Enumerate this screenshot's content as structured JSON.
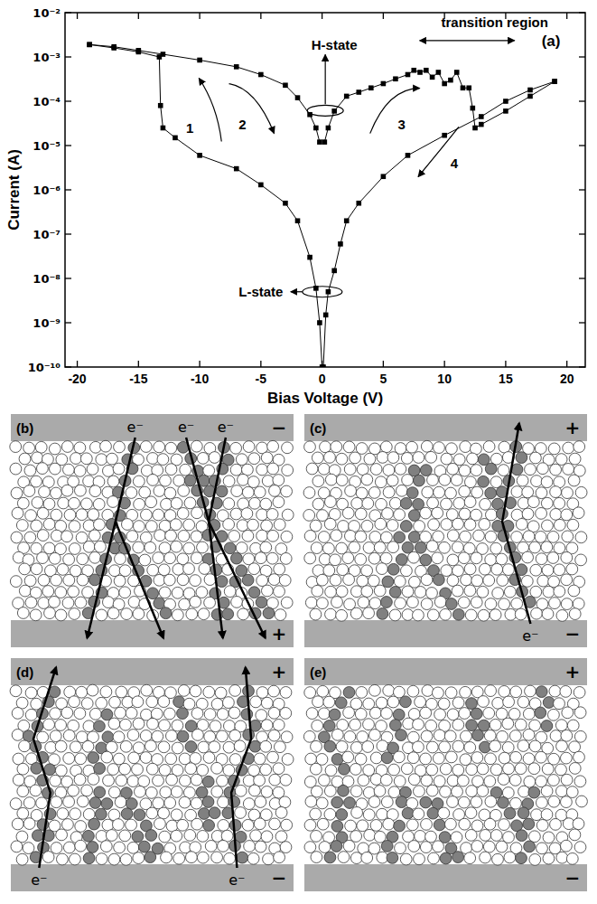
{
  "chart_data": {
    "type": "line",
    "xlabel": "Bias Voltage (V)",
    "ylabel": "Current (A)",
    "xlim": [
      -21,
      21.5
    ],
    "ylim": [
      1e-10,
      0.01
    ],
    "log": "y",
    "grid": false,
    "xticks": [
      -20,
      -15,
      -10,
      -5,
      0,
      5,
      10,
      15,
      20
    ],
    "yticks": [
      {
        "value": 1e-10,
        "label": "10⁻¹⁰"
      },
      {
        "value": 1e-09,
        "label": "10⁻⁹"
      },
      {
        "value": 1e-08,
        "label": "10⁻⁸"
      },
      {
        "value": 1e-07,
        "label": "10⁻⁷"
      },
      {
        "value": 1e-06,
        "label": "10⁻⁶"
      },
      {
        "value": 1e-05,
        "label": "10⁻⁵"
      },
      {
        "value": 0.0001,
        "label": "10⁻⁴"
      },
      {
        "value": 0.001,
        "label": "10⁻³"
      },
      {
        "value": 0.01,
        "label": "10⁻²"
      }
    ],
    "series": [
      {
        "color": "#000000",
        "marker": "square",
        "line_style": "solid",
        "x": [
          0,
          -0.2,
          -0.5,
          -1,
          -2,
          -3,
          -5,
          -7,
          -10,
          -12,
          -13,
          -13.2,
          -13.3,
          -15,
          -17,
          -19
        ],
        "values": [
          1e-10,
          1e-09,
          6e-09,
          3e-08,
          2e-07,
          5e-07,
          1.3e-06,
          3e-06,
          6e-06,
          1.5e-05,
          2.5e-05,
          8e-05,
          0.001,
          0.0013,
          0.0016,
          0.0019
        ]
      },
      {
        "color": "#000000",
        "marker": "square",
        "line_style": "solid",
        "x": [
          -19,
          -17,
          -15,
          -13,
          -10,
          -7,
          -5,
          -3,
          -2,
          -1,
          -0.5,
          -0.2
        ],
        "values": [
          0.0019,
          0.0017,
          0.0014,
          0.00115,
          0.00085,
          0.0006,
          0.0004,
          0.00023,
          0.00012,
          5e-05,
          2.5e-05,
          1.2e-05
        ]
      },
      {
        "color": "#000000",
        "marker": "square",
        "line_style": "solid",
        "x": [
          0.2,
          0.5,
          1,
          2,
          3,
          4,
          5,
          6,
          7,
          7.5,
          8,
          8.5,
          9,
          9.5,
          10,
          10.5,
          11,
          11.5,
          12,
          12.3,
          12.5,
          13,
          15,
          17,
          19
        ],
        "values": [
          1.2e-05,
          2.5e-05,
          6e-05,
          0.00013,
          0.00016,
          0.0002,
          0.00025,
          0.00032,
          0.0004,
          0.0005,
          0.00045,
          0.0005,
          0.00035,
          0.00045,
          0.00025,
          0.0003,
          0.00045,
          0.0002,
          0.0002,
          7e-05,
          2.5e-05,
          3e-05,
          6e-05,
          0.00013,
          0.00028
        ]
      },
      {
        "color": "#000000",
        "marker": "square",
        "line_style": "solid",
        "x": [
          19,
          17,
          15,
          13,
          10,
          7,
          5,
          3,
          2,
          1.5,
          1,
          0.5,
          0.3,
          0.1
        ],
        "values": [
          0.00028,
          0.00018,
          0.0001,
          4.5e-05,
          1.7e-05,
          6e-06,
          2e-06,
          5e-07,
          2e-07,
          6e-08,
          1.5e-08,
          5e-09,
          1.5e-09,
          1e-10
        ]
      }
    ],
    "annotations": [
      {
        "text": "H-state",
        "x": 1.0,
        "y": 0.0019
      },
      {
        "text": "L-state",
        "x": -5.0,
        "y": 5e-09
      },
      {
        "text": "transition region",
        "x": 14.1,
        "y": 0.006
      },
      {
        "text": "(a)",
        "x": 18.7,
        "y": 0.0023
      },
      {
        "text": "1",
        "x": -10.8,
        "y": 2.5e-05
      },
      {
        "text": "2",
        "x": -6.5,
        "y": 3e-05
      },
      {
        "text": "3",
        "x": 6.5,
        "y": 3e-05
      },
      {
        "text": "4",
        "x": 10.8,
        "y": 4e-06
      }
    ]
  },
  "diagrams": {
    "panels": [
      {
        "label": "(b)",
        "top_sign": "−",
        "bottom_sign": "+",
        "electrons": [
          "e⁻",
          "e⁻",
          "e⁻"
        ]
      },
      {
        "label": "(c)",
        "top_sign": "+",
        "bottom_sign": "−",
        "electrons": [
          "e⁻"
        ]
      },
      {
        "label": "(d)",
        "top_sign": "+",
        "bottom_sign": "−",
        "electrons": [
          "e⁻",
          "e⁻"
        ]
      },
      {
        "label": "(e)",
        "top_sign": "+",
        "bottom_sign": "−"
      }
    ]
  }
}
